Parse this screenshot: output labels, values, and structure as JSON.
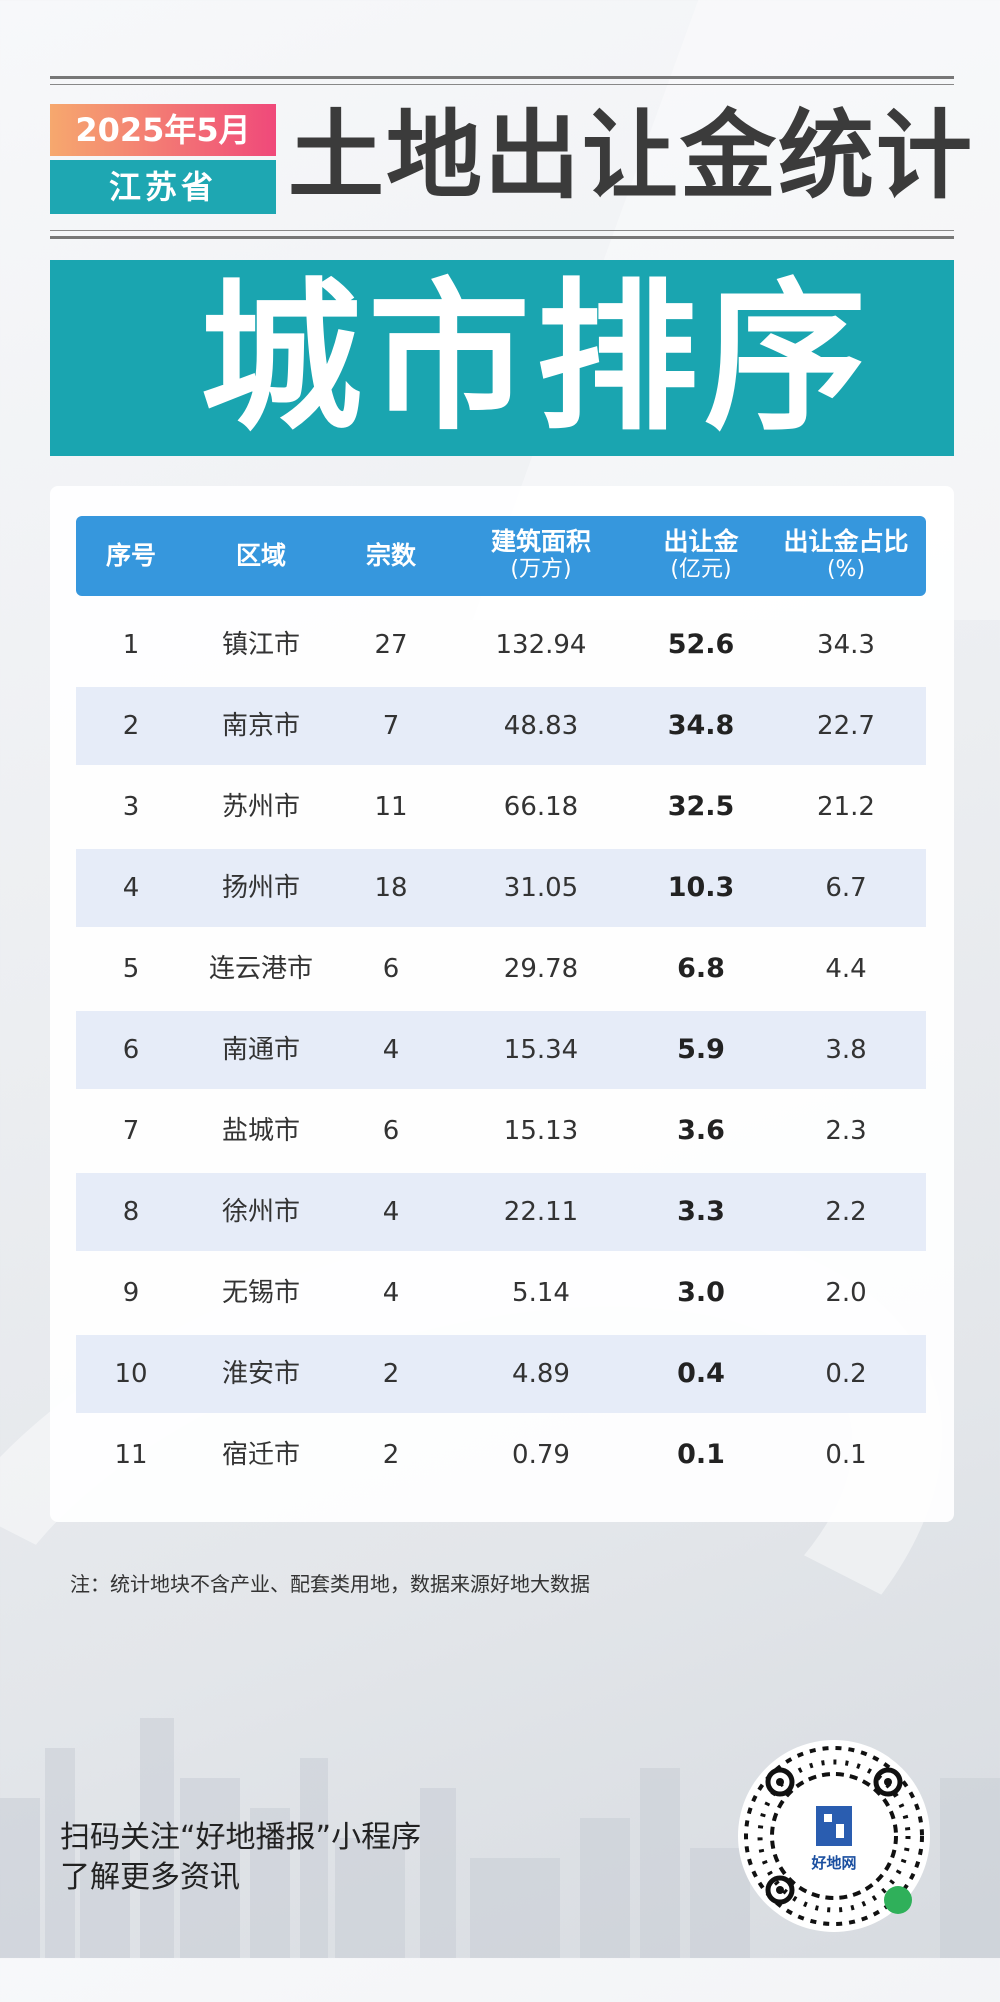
{
  "header": {
    "date": "2025年5月",
    "region": "江苏省",
    "title": "土地出让金统计",
    "banner": "城市排序"
  },
  "table": {
    "headers": [
      {
        "main": "序号",
        "sub": ""
      },
      {
        "main": "区域",
        "sub": ""
      },
      {
        "main": "宗数",
        "sub": ""
      },
      {
        "main": "建筑面积",
        "sub": "(万方)"
      },
      {
        "main": "出让金",
        "sub": "(亿元)"
      },
      {
        "main": "出让金占比",
        "sub": "(%)"
      }
    ],
    "rows": [
      {
        "rank": "1",
        "city": "镇江市",
        "count": "27",
        "area": "132.94",
        "fee": "52.6",
        "share": "34.3"
      },
      {
        "rank": "2",
        "city": "南京市",
        "count": "7",
        "area": "48.83",
        "fee": "34.8",
        "share": "22.7"
      },
      {
        "rank": "3",
        "city": "苏州市",
        "count": "11",
        "area": "66.18",
        "fee": "32.5",
        "share": "21.2"
      },
      {
        "rank": "4",
        "city": "扬州市",
        "count": "18",
        "area": "31.05",
        "fee": "10.3",
        "share": "6.7"
      },
      {
        "rank": "5",
        "city": "连云港市",
        "count": "6",
        "area": "29.78",
        "fee": "6.8",
        "share": "4.4"
      },
      {
        "rank": "6",
        "city": "南通市",
        "count": "4",
        "area": "15.34",
        "fee": "5.9",
        "share": "3.8"
      },
      {
        "rank": "7",
        "city": "盐城市",
        "count": "6",
        "area": "15.13",
        "fee": "3.6",
        "share": "2.3"
      },
      {
        "rank": "8",
        "city": "徐州市",
        "count": "4",
        "area": "22.11",
        "fee": "3.3",
        "share": "2.2"
      },
      {
        "rank": "9",
        "city": "无锡市",
        "count": "4",
        "area": "5.14",
        "fee": "3.0",
        "share": "2.0"
      },
      {
        "rank": "10",
        "city": "淮安市",
        "count": "2",
        "area": "4.89",
        "fee": "0.4",
        "share": "0.2"
      },
      {
        "rank": "11",
        "city": "宿迁市",
        "count": "2",
        "area": "0.79",
        "fee": "0.1",
        "share": "0.1"
      }
    ]
  },
  "note": "注：统计地块不含产业、配套类用地，数据来源好地大数据",
  "footer": {
    "cta_line1": "扫码关注“好地播报”小程序",
    "cta_line2": "了解更多资讯",
    "qr_brand": "好地网"
  },
  "colors": {
    "teal": "#1aa5b0",
    "header_blue": "#3697dd",
    "stripe": "#e6ecf8",
    "badge_gradient_start": "#f6a86e",
    "badge_gradient_end": "#f0497a"
  }
}
